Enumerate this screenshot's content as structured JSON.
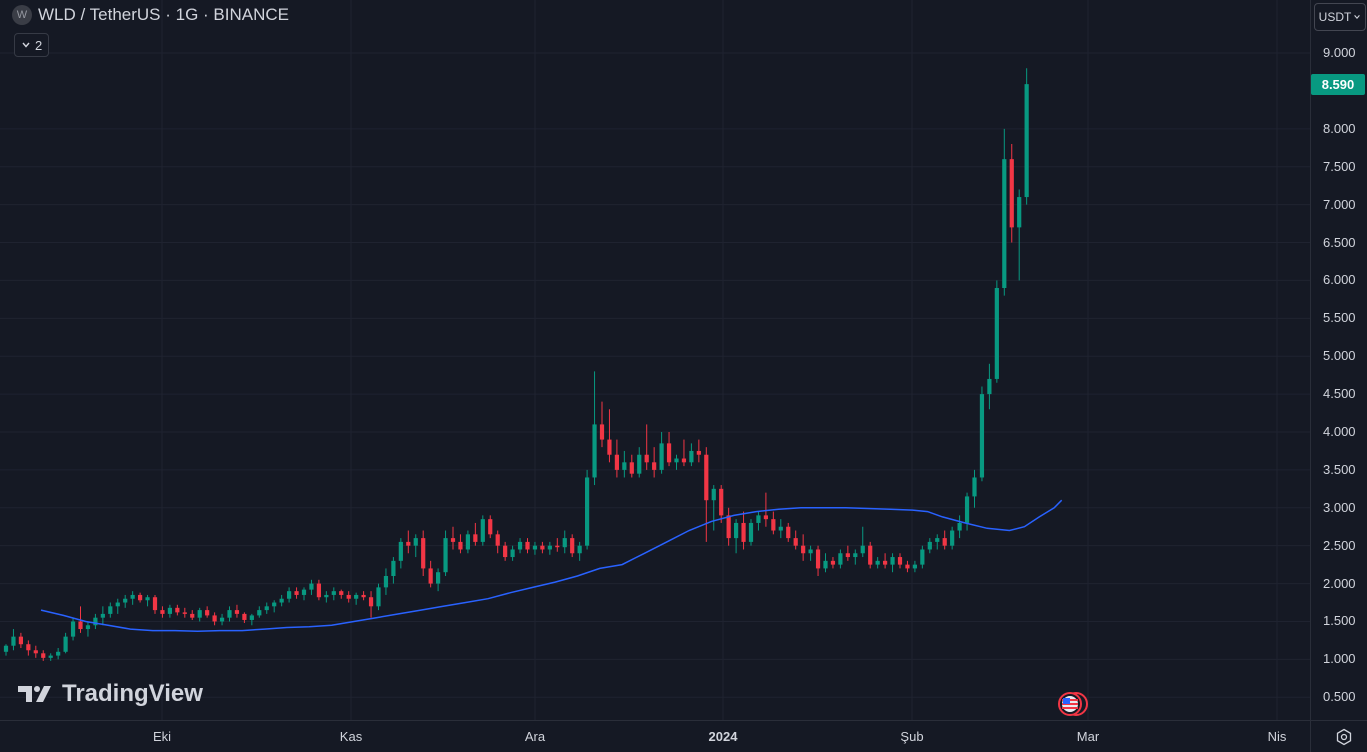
{
  "legend": {
    "logo_letter": "W",
    "title": "WLD / TetherUS · 1G · BINANCE"
  },
  "indicators_toggle": {
    "label": "2",
    "icon": "chevron-down-icon"
  },
  "currency_selector": {
    "label": "USDT",
    "icon": "chevron-down-icon"
  },
  "watermark": {
    "text": "TradingView"
  },
  "last_price": "8.590",
  "colors": {
    "up": "#089981",
    "down": "#f23645",
    "ma": "#2962ff",
    "background": "#151924"
  },
  "chart_data": {
    "type": "candlestick",
    "ylim": [
      0.2,
      9.7
    ],
    "price_ticks": [
      "9.000",
      "8.000",
      "7.500",
      "7.000",
      "6.500",
      "6.000",
      "5.500",
      "5.000",
      "4.500",
      "4.000",
      "3.500",
      "3.000",
      "2.500",
      "2.000",
      "1.500",
      "1.000",
      "0.500"
    ],
    "time_ticks": [
      {
        "label": "Eki",
        "bold": false
      },
      {
        "label": "Kas",
        "bold": false
      },
      {
        "label": "Ara",
        "bold": false
      },
      {
        "label": "2024",
        "bold": true
      },
      {
        "label": "Şub",
        "bold": false
      },
      {
        "label": "Mar",
        "bold": false
      },
      {
        "label": "Nis",
        "bold": false
      }
    ],
    "candles": [
      [
        1.1,
        1.2,
        1.05,
        1.18
      ],
      [
        1.18,
        1.4,
        1.12,
        1.3
      ],
      [
        1.3,
        1.35,
        1.15,
        1.2
      ],
      [
        1.2,
        1.25,
        1.05,
        1.12
      ],
      [
        1.12,
        1.18,
        1.02,
        1.08
      ],
      [
        1.08,
        1.12,
        0.98,
        1.02
      ],
      [
        1.02,
        1.08,
        0.98,
        1.05
      ],
      [
        1.05,
        1.15,
        1.0,
        1.1
      ],
      [
        1.1,
        1.35,
        1.08,
        1.3
      ],
      [
        1.3,
        1.55,
        1.25,
        1.5
      ],
      [
        1.5,
        1.7,
        1.35,
        1.4
      ],
      [
        1.4,
        1.5,
        1.3,
        1.45
      ],
      [
        1.45,
        1.6,
        1.4,
        1.55
      ],
      [
        1.55,
        1.7,
        1.45,
        1.6
      ],
      [
        1.6,
        1.75,
        1.55,
        1.7
      ],
      [
        1.7,
        1.8,
        1.6,
        1.75
      ],
      [
        1.75,
        1.85,
        1.68,
        1.8
      ],
      [
        1.8,
        1.9,
        1.72,
        1.85
      ],
      [
        1.85,
        1.88,
        1.75,
        1.78
      ],
      [
        1.78,
        1.85,
        1.7,
        1.82
      ],
      [
        1.82,
        1.85,
        1.6,
        1.65
      ],
      [
        1.65,
        1.7,
        1.55,
        1.6
      ],
      [
        1.6,
        1.72,
        1.55,
        1.68
      ],
      [
        1.68,
        1.72,
        1.58,
        1.62
      ],
      [
        1.62,
        1.68,
        1.55,
        1.6
      ],
      [
        1.6,
        1.65,
        1.52,
        1.55
      ],
      [
        1.55,
        1.68,
        1.5,
        1.65
      ],
      [
        1.65,
        1.7,
        1.55,
        1.58
      ],
      [
        1.58,
        1.62,
        1.45,
        1.5
      ],
      [
        1.5,
        1.6,
        1.45,
        1.55
      ],
      [
        1.55,
        1.7,
        1.5,
        1.65
      ],
      [
        1.65,
        1.72,
        1.55,
        1.6
      ],
      [
        1.6,
        1.62,
        1.48,
        1.52
      ],
      [
        1.52,
        1.6,
        1.45,
        1.58
      ],
      [
        1.58,
        1.7,
        1.55,
        1.65
      ],
      [
        1.65,
        1.75,
        1.6,
        1.7
      ],
      [
        1.7,
        1.78,
        1.62,
        1.75
      ],
      [
        1.75,
        1.85,
        1.7,
        1.8
      ],
      [
        1.8,
        1.95,
        1.75,
        1.9
      ],
      [
        1.9,
        1.95,
        1.8,
        1.85
      ],
      [
        1.85,
        1.95,
        1.78,
        1.92
      ],
      [
        1.92,
        2.05,
        1.85,
        2.0
      ],
      [
        2.0,
        2.05,
        1.78,
        1.82
      ],
      [
        1.82,
        1.9,
        1.75,
        1.85
      ],
      [
        1.85,
        1.95,
        1.78,
        1.9
      ],
      [
        1.9,
        1.92,
        1.8,
        1.85
      ],
      [
        1.85,
        1.9,
        1.75,
        1.8
      ],
      [
        1.8,
        1.88,
        1.72,
        1.85
      ],
      [
        1.85,
        1.9,
        1.78,
        1.82
      ],
      [
        1.82,
        1.9,
        1.55,
        1.7
      ],
      [
        1.7,
        2.0,
        1.65,
        1.95
      ],
      [
        1.95,
        2.2,
        1.85,
        2.1
      ],
      [
        2.1,
        2.35,
        2.0,
        2.3
      ],
      [
        2.3,
        2.6,
        2.2,
        2.55
      ],
      [
        2.55,
        2.7,
        2.4,
        2.5
      ],
      [
        2.5,
        2.65,
        2.35,
        2.6
      ],
      [
        2.6,
        2.7,
        2.1,
        2.2
      ],
      [
        2.2,
        2.3,
        1.95,
        2.0
      ],
      [
        2.0,
        2.2,
        1.9,
        2.15
      ],
      [
        2.15,
        2.7,
        2.1,
        2.6
      ],
      [
        2.6,
        2.75,
        2.45,
        2.55
      ],
      [
        2.55,
        2.65,
        2.4,
        2.45
      ],
      [
        2.45,
        2.7,
        2.4,
        2.65
      ],
      [
        2.65,
        2.8,
        2.5,
        2.55
      ],
      [
        2.55,
        2.9,
        2.5,
        2.85
      ],
      [
        2.85,
        2.9,
        2.6,
        2.65
      ],
      [
        2.65,
        2.7,
        2.4,
        2.5
      ],
      [
        2.5,
        2.55,
        2.3,
        2.35
      ],
      [
        2.35,
        2.5,
        2.3,
        2.45
      ],
      [
        2.45,
        2.6,
        2.4,
        2.55
      ],
      [
        2.55,
        2.6,
        2.4,
        2.45
      ],
      [
        2.45,
        2.55,
        2.38,
        2.5
      ],
      [
        2.5,
        2.55,
        2.4,
        2.45
      ],
      [
        2.45,
        2.55,
        2.38,
        2.5
      ],
      [
        2.5,
        2.6,
        2.42,
        2.48
      ],
      [
        2.48,
        2.7,
        2.4,
        2.6
      ],
      [
        2.6,
        2.65,
        2.35,
        2.4
      ],
      [
        2.4,
        2.55,
        2.3,
        2.5
      ],
      [
        2.5,
        3.5,
        2.45,
        3.4
      ],
      [
        3.4,
        4.8,
        3.3,
        4.1
      ],
      [
        4.1,
        4.4,
        3.8,
        3.9
      ],
      [
        3.9,
        4.3,
        3.6,
        3.7
      ],
      [
        3.7,
        3.9,
        3.4,
        3.5
      ],
      [
        3.5,
        3.75,
        3.4,
        3.6
      ],
      [
        3.6,
        3.7,
        3.4,
        3.45
      ],
      [
        3.45,
        3.8,
        3.4,
        3.7
      ],
      [
        3.7,
        4.1,
        3.5,
        3.6
      ],
      [
        3.6,
        3.8,
        3.4,
        3.5
      ],
      [
        3.5,
        4.0,
        3.45,
        3.85
      ],
      [
        3.85,
        4.0,
        3.55,
        3.6
      ],
      [
        3.6,
        3.7,
        3.5,
        3.65
      ],
      [
        3.65,
        3.9,
        3.55,
        3.6
      ],
      [
        3.6,
        3.85,
        3.55,
        3.75
      ],
      [
        3.75,
        3.9,
        3.6,
        3.7
      ],
      [
        3.7,
        3.8,
        2.55,
        3.1
      ],
      [
        3.1,
        3.3,
        2.7,
        3.25
      ],
      [
        3.25,
        3.3,
        2.8,
        2.9
      ],
      [
        2.9,
        3.0,
        2.5,
        2.6
      ],
      [
        2.6,
        2.85,
        2.4,
        2.8
      ],
      [
        2.8,
        2.95,
        2.45,
        2.55
      ],
      [
        2.55,
        2.85,
        2.5,
        2.8
      ],
      [
        2.8,
        2.95,
        2.7,
        2.9
      ],
      [
        2.9,
        3.2,
        2.75,
        2.85
      ],
      [
        2.85,
        2.95,
        2.65,
        2.7
      ],
      [
        2.7,
        2.85,
        2.6,
        2.75
      ],
      [
        2.75,
        2.8,
        2.55,
        2.6
      ],
      [
        2.6,
        2.7,
        2.45,
        2.5
      ],
      [
        2.5,
        2.65,
        2.3,
        2.4
      ],
      [
        2.4,
        2.5,
        2.3,
        2.45
      ],
      [
        2.45,
        2.5,
        2.1,
        2.2
      ],
      [
        2.2,
        2.4,
        2.15,
        2.3
      ],
      [
        2.3,
        2.35,
        2.2,
        2.25
      ],
      [
        2.25,
        2.45,
        2.2,
        2.4
      ],
      [
        2.4,
        2.5,
        2.3,
        2.35
      ],
      [
        2.35,
        2.45,
        2.25,
        2.4
      ],
      [
        2.4,
        2.75,
        2.35,
        2.5
      ],
      [
        2.5,
        2.55,
        2.2,
        2.25
      ],
      [
        2.25,
        2.35,
        2.2,
        2.3
      ],
      [
        2.3,
        2.4,
        2.2,
        2.25
      ],
      [
        2.25,
        2.4,
        2.15,
        2.35
      ],
      [
        2.35,
        2.4,
        2.2,
        2.25
      ],
      [
        2.25,
        2.3,
        2.15,
        2.2
      ],
      [
        2.2,
        2.3,
        2.15,
        2.25
      ],
      [
        2.25,
        2.5,
        2.2,
        2.45
      ],
      [
        2.45,
        2.6,
        2.4,
        2.55
      ],
      [
        2.55,
        2.65,
        2.45,
        2.6
      ],
      [
        2.6,
        2.7,
        2.45,
        2.5
      ],
      [
        2.5,
        2.75,
        2.45,
        2.7
      ],
      [
        2.7,
        2.9,
        2.6,
        2.8
      ],
      [
        2.8,
        3.2,
        2.7,
        3.15
      ],
      [
        3.15,
        3.5,
        3.0,
        3.4
      ],
      [
        3.4,
        4.6,
        3.35,
        4.5
      ],
      [
        4.5,
        4.9,
        4.3,
        4.7
      ],
      [
        4.7,
        6.0,
        4.65,
        5.9
      ],
      [
        5.9,
        8.0,
        5.8,
        7.6
      ],
      [
        7.6,
        7.8,
        6.5,
        6.7
      ],
      [
        6.7,
        7.2,
        6.0,
        7.1
      ],
      [
        7.1,
        8.8,
        7.0,
        8.59
      ]
    ],
    "ma_line": [
      [
        0,
        1.65
      ],
      [
        3,
        1.58
      ],
      [
        6,
        1.5
      ],
      [
        9,
        1.45
      ],
      [
        12,
        1.4
      ],
      [
        15,
        1.38
      ],
      [
        18,
        1.38
      ],
      [
        21,
        1.37
      ],
      [
        24,
        1.38
      ],
      [
        27,
        1.38
      ],
      [
        30,
        1.4
      ],
      [
        33,
        1.42
      ],
      [
        36,
        1.43
      ],
      [
        39,
        1.45
      ],
      [
        42,
        1.5
      ],
      [
        45,
        1.55
      ],
      [
        48,
        1.6
      ],
      [
        51,
        1.65
      ],
      [
        54,
        1.7
      ],
      [
        57,
        1.75
      ],
      [
        60,
        1.8
      ],
      [
        63,
        1.88
      ],
      [
        66,
        1.95
      ],
      [
        69,
        2.02
      ],
      [
        72,
        2.1
      ],
      [
        75,
        2.2
      ],
      [
        78,
        2.25
      ],
      [
        81,
        2.4
      ],
      [
        84,
        2.55
      ],
      [
        87,
        2.7
      ],
      [
        90,
        2.82
      ],
      [
        93,
        2.9
      ],
      [
        96,
        2.95
      ],
      [
        99,
        2.98
      ],
      [
        102,
        3.0
      ],
      [
        105,
        3.0
      ],
      [
        108,
        3.0
      ],
      [
        111,
        2.99
      ],
      [
        114,
        2.98
      ],
      [
        117,
        2.97
      ],
      [
        119,
        2.95
      ],
      [
        121,
        2.88
      ],
      [
        124,
        2.8
      ],
      [
        127,
        2.73
      ],
      [
        130,
        2.7
      ],
      [
        132,
        2.75
      ],
      [
        134,
        2.88
      ],
      [
        136,
        3.0
      ],
      [
        137,
        3.1
      ]
    ]
  }
}
